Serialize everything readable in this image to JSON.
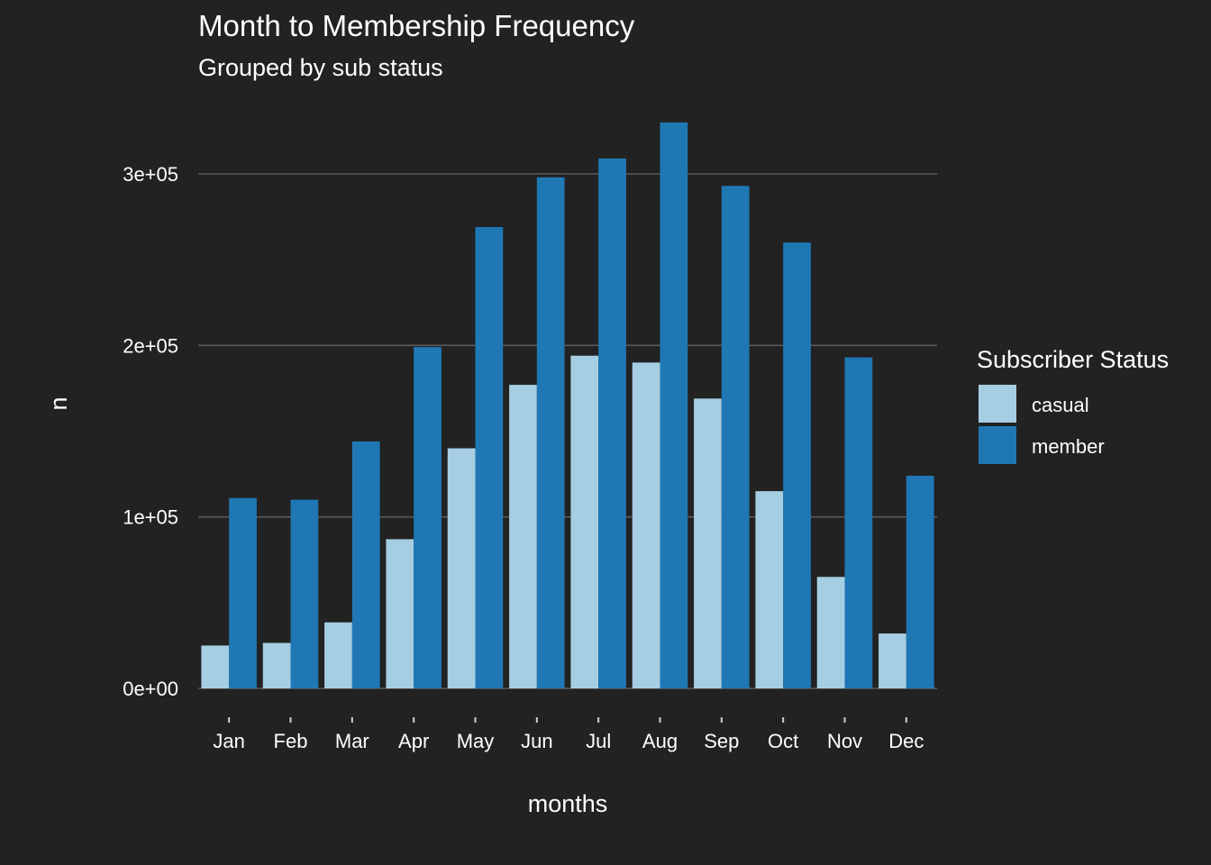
{
  "chart_data": {
    "type": "bar",
    "title": "Month to Membership Frequency",
    "subtitle": "Grouped by sub status",
    "xlabel": "months",
    "ylabel": "n",
    "categories": [
      "Jan",
      "Feb",
      "Mar",
      "Apr",
      "May",
      "Jun",
      "Jul",
      "Aug",
      "Sep",
      "Oct",
      "Nov",
      "Dec"
    ],
    "series": [
      {
        "name": "casual",
        "color": "#a6cee3",
        "values": [
          25000,
          26500,
          38500,
          87000,
          140000,
          177000,
          194000,
          190000,
          169000,
          115000,
          65000,
          32000
        ]
      },
      {
        "name": "member",
        "color": "#1f78b4",
        "values": [
          111000,
          110000,
          144000,
          199000,
          269000,
          298000,
          309000,
          330000,
          293000,
          260000,
          193000,
          124000
        ]
      }
    ],
    "ylim": [
      0,
      330000
    ],
    "yticks": [
      0,
      100000,
      200000,
      300000
    ],
    "ytick_labels": [
      "0e+00",
      "1e+05",
      "2e+05",
      "3e+05"
    ],
    "grid": true,
    "legend": {
      "title": "Subscriber Status",
      "position": "right"
    },
    "background": "#222222",
    "gridline_color": "#5a5a5a",
    "text_color": "#ffffff"
  }
}
